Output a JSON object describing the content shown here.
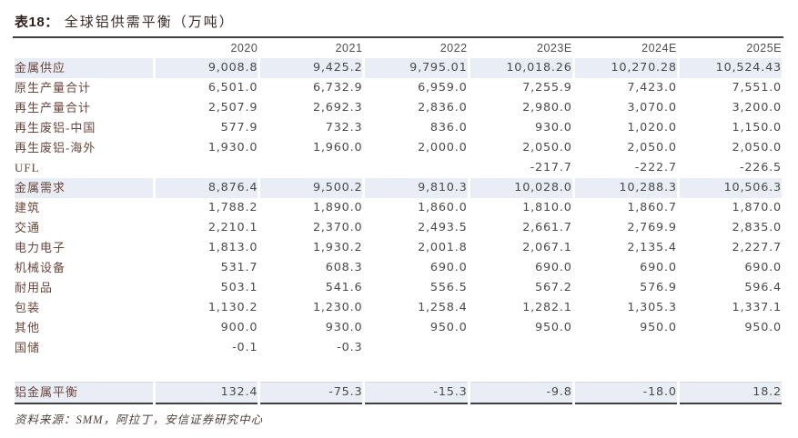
{
  "title": {
    "tag": "表18：",
    "text": "全球铝供需平衡（万吨）"
  },
  "table": {
    "columns": [
      "2020",
      "2021",
      "2022",
      "2023E",
      "2024E",
      "2025E"
    ],
    "rows": [
      {
        "label": "金属供应",
        "highlight": true,
        "values": [
          "9,008.8",
          "9,425.2",
          "9,795.01",
          "10,018.26",
          "10,270.28",
          "10,524.43"
        ]
      },
      {
        "label": "原生产量合计",
        "highlight": false,
        "values": [
          "6,501.0",
          "6,732.9",
          "6,959.0",
          "7,255.9",
          "7,423.0",
          "7,551.0"
        ]
      },
      {
        "label": "再生产量合计",
        "highlight": false,
        "values": [
          "2,507.9",
          "2,692.3",
          "2,836.0",
          "2,980.0",
          "3,070.0",
          "3,200.0"
        ]
      },
      {
        "label": "再生废铝-中国",
        "highlight": false,
        "values": [
          "577.9",
          "732.3",
          "836.0",
          "930.0",
          "1,020.0",
          "1,150.0"
        ]
      },
      {
        "label": "再生废铝-海外",
        "highlight": false,
        "values": [
          "1,930.0",
          "1,960.0",
          "2,000.0",
          "2,050.0",
          "2,050.0",
          "2,050.0"
        ]
      },
      {
        "label": "UFL",
        "highlight": false,
        "values": [
          "",
          "",
          "",
          "-217.7",
          "-222.7",
          "-226.5"
        ]
      },
      {
        "label": "金属需求",
        "highlight": true,
        "values": [
          "8,876.4",
          "9,500.2",
          "9,810.3",
          "10,028.0",
          "10,288.3",
          "10,506.3"
        ]
      },
      {
        "label": "建筑",
        "highlight": false,
        "values": [
          "1,788.2",
          "1,890.0",
          "1,860.0",
          "1,810.0",
          "1,860.7",
          "1,870.0"
        ]
      },
      {
        "label": "交通",
        "highlight": false,
        "values": [
          "2,210.1",
          "2,370.0",
          "2,493.5",
          "2,661.7",
          "2,769.9",
          "2,835.0"
        ]
      },
      {
        "label": "电力电子",
        "highlight": false,
        "values": [
          "1,813.0",
          "1,930.2",
          "2,001.8",
          "2,067.1",
          "2,135.4",
          "2,227.7"
        ]
      },
      {
        "label": "机械设备",
        "highlight": false,
        "values": [
          "531.7",
          "608.3",
          "690.0",
          "690.0",
          "690.0",
          "690.0"
        ]
      },
      {
        "label": "耐用品",
        "highlight": false,
        "values": [
          "503.1",
          "541.6",
          "556.5",
          "567.2",
          "576.9",
          "596.4"
        ]
      },
      {
        "label": "包装",
        "highlight": false,
        "values": [
          "1,130.2",
          "1,230.0",
          "1,258.4",
          "1,282.1",
          "1,305.3",
          "1,337.1"
        ]
      },
      {
        "label": "其他",
        "highlight": false,
        "values": [
          "900.0",
          "930.0",
          "950.0",
          "950.0",
          "950.0",
          "950.0"
        ]
      },
      {
        "label": "国储",
        "highlight": false,
        "values": [
          "-0.1",
          "-0.3",
          "",
          "",
          "",
          ""
        ]
      },
      {
        "label": "",
        "spacer": true,
        "values": [
          "",
          "",
          "",
          "",
          "",
          ""
        ]
      },
      {
        "label": "铝金属平衡",
        "highlight": true,
        "balance": true,
        "values": [
          "132.4",
          "-75.3",
          "-15.3",
          "-9.8",
          "-18.0",
          "18.2"
        ]
      }
    ]
  },
  "footer": {
    "source_label": "资料来源：",
    "source_text": "SMM，阿拉丁，安信证券研究中心"
  },
  "colors": {
    "highlight_row_bg": "#e9edf6",
    "label_text": "#6b463c",
    "value_text": "#4a4a4a",
    "rule_dark": "#3f3f3f",
    "rule_light": "#d8d8d8"
  }
}
